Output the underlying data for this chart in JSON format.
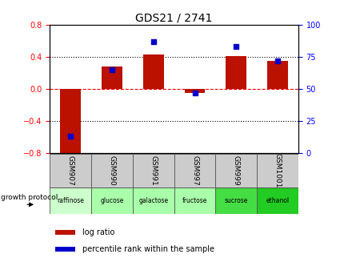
{
  "title": "GDS21 / 2741",
  "samples": [
    "GSM907",
    "GSM990",
    "GSM991",
    "GSM997",
    "GSM999",
    "GSM1001"
  ],
  "protocols": [
    "raffinose",
    "glucose",
    "galactose",
    "fructose",
    "sucrose",
    "ethanol"
  ],
  "protocol_colors": [
    "#ccffcc",
    "#aaffaa",
    "#aaffaa",
    "#aaffaa",
    "#44dd44",
    "#22cc22"
  ],
  "log_ratio": [
    -0.85,
    0.28,
    0.43,
    -0.05,
    0.41,
    0.35
  ],
  "percentile_rank": [
    13,
    65,
    87,
    47,
    83,
    72
  ],
  "bar_color": "#bb1100",
  "dot_color": "#0000cc",
  "ylim_left": [
    -0.8,
    0.8
  ],
  "ylim_right": [
    0,
    100
  ],
  "yticks_left": [
    -0.8,
    -0.4,
    0.0,
    0.4,
    0.8
  ],
  "yticks_right": [
    0,
    25,
    50,
    75,
    100
  ],
  "hlines_dotted": [
    -0.4,
    0.4
  ],
  "hline_dashed": 0.0,
  "bg_color": "#ffffff",
  "growth_label": "growth protocol",
  "legend_logratio": "log ratio",
  "legend_percentile": "percentile rank within the sample"
}
